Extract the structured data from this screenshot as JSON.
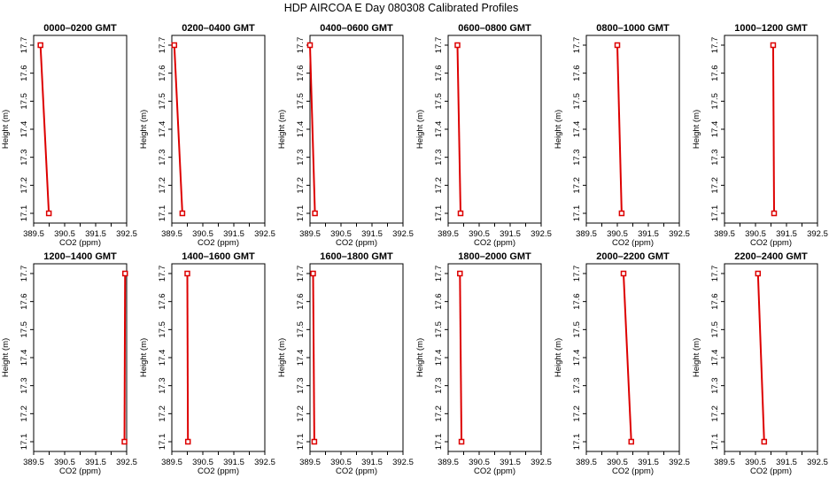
{
  "title": "HDP  AIRCOA E  Day 080308  Calibrated Profiles",
  "colors": {
    "line": "#dd0000",
    "marker": "#dd0000",
    "axis": "#000000",
    "background": "#ffffff"
  },
  "chart_data": [
    {
      "type": "line",
      "title": "0000–0200 GMT",
      "xlabel": "CO2 (ppm)",
      "ylabel": "Height (m)",
      "xlim": [
        389.5,
        392.5
      ],
      "ylim": [
        17.1,
        17.7
      ],
      "xticks": [
        "389.5",
        "390.5",
        "391.5",
        "392.5"
      ],
      "yticks": [
        "17.1",
        "17.2",
        "17.3",
        "17.4",
        "17.5",
        "17.6",
        "17.7"
      ],
      "series": [
        {
          "points": [
            {
              "x": 389.72,
              "y": 17.7
            },
            {
              "x": 389.99,
              "y": 17.1
            }
          ]
        }
      ]
    },
    {
      "type": "line",
      "title": "0200–0400 GMT",
      "xlabel": "CO2 (ppm)",
      "ylabel": "Height (m)",
      "xlim": [
        389.5,
        392.5
      ],
      "ylim": [
        17.1,
        17.7
      ],
      "xticks": [
        "389.5",
        "390.5",
        "391.5",
        "392.5"
      ],
      "yticks": [
        "17.1",
        "17.2",
        "17.3",
        "17.4",
        "17.5",
        "17.6",
        "17.7"
      ],
      "series": [
        {
          "points": [
            {
              "x": 389.58,
              "y": 17.7
            },
            {
              "x": 389.84,
              "y": 17.1
            }
          ]
        }
      ]
    },
    {
      "type": "line",
      "title": "0400–0600 GMT",
      "xlabel": "CO2 (ppm)",
      "ylabel": "Height (m)",
      "xlim": [
        389.5,
        392.5
      ],
      "ylim": [
        17.1,
        17.7
      ],
      "xticks": [
        "389.5",
        "390.5",
        "391.5",
        "392.5"
      ],
      "yticks": [
        "17.1",
        "17.2",
        "17.3",
        "17.4",
        "17.5",
        "17.6",
        "17.7"
      ],
      "series": [
        {
          "points": [
            {
              "x": 389.5,
              "y": 17.7
            },
            {
              "x": 389.66,
              "y": 17.1
            }
          ]
        }
      ]
    },
    {
      "type": "line",
      "title": "0600–0800 GMT",
      "xlabel": "CO2 (ppm)",
      "ylabel": "Height (m)",
      "xlim": [
        389.5,
        392.5
      ],
      "ylim": [
        17.1,
        17.7
      ],
      "xticks": [
        "389.5",
        "390.5",
        "391.5",
        "392.5"
      ],
      "yticks": [
        "17.1",
        "17.2",
        "17.3",
        "17.4",
        "17.5",
        "17.6",
        "17.7"
      ],
      "series": [
        {
          "points": [
            {
              "x": 389.8,
              "y": 17.7
            },
            {
              "x": 389.9,
              "y": 17.1
            }
          ]
        }
      ]
    },
    {
      "type": "line",
      "title": "0800–1000 GMT",
      "xlabel": "CO2 (ppm)",
      "ylabel": "Height (m)",
      "xlim": [
        389.5,
        392.5
      ],
      "ylim": [
        17.1,
        17.7
      ],
      "xticks": [
        "389.5",
        "390.5",
        "391.5",
        "392.5"
      ],
      "yticks": [
        "17.1",
        "17.2",
        "17.3",
        "17.4",
        "17.5",
        "17.6",
        "17.7"
      ],
      "series": [
        {
          "points": [
            {
              "x": 390.5,
              "y": 17.7
            },
            {
              "x": 390.64,
              "y": 17.1
            }
          ]
        }
      ]
    },
    {
      "type": "line",
      "title": "1000–1200 GMT",
      "xlabel": "CO2 (ppm)",
      "ylabel": "Height (m)",
      "xlim": [
        389.5,
        392.5
      ],
      "ylim": [
        17.1,
        17.7
      ],
      "xticks": [
        "389.5",
        "390.5",
        "391.5",
        "392.5"
      ],
      "yticks": [
        "17.1",
        "17.2",
        "17.3",
        "17.4",
        "17.5",
        "17.6",
        "17.7"
      ],
      "series": [
        {
          "points": [
            {
              "x": 391.07,
              "y": 17.7
            },
            {
              "x": 391.1,
              "y": 17.1
            }
          ]
        }
      ]
    },
    {
      "type": "line",
      "title": "1200–1400 GMT",
      "xlabel": "CO2 (ppm)",
      "ylabel": "Height (m)",
      "xlim": [
        389.5,
        392.5
      ],
      "ylim": [
        17.1,
        17.7
      ],
      "xticks": [
        "389.5",
        "390.5",
        "391.5",
        "392.5"
      ],
      "yticks": [
        "17.1",
        "17.2",
        "17.3",
        "17.4",
        "17.5",
        "17.6",
        "17.7"
      ],
      "series": [
        {
          "points": [
            {
              "x": 392.45,
              "y": 17.7
            },
            {
              "x": 392.43,
              "y": 17.1
            }
          ]
        }
      ]
    },
    {
      "type": "line",
      "title": "1400–1600 GMT",
      "xlabel": "CO2 (ppm)",
      "ylabel": "Height (m)",
      "xlim": [
        389.5,
        392.5
      ],
      "ylim": [
        17.1,
        17.7
      ],
      "xticks": [
        "389.5",
        "390.5",
        "391.5",
        "392.5"
      ],
      "yticks": [
        "17.1",
        "17.2",
        "17.3",
        "17.4",
        "17.5",
        "17.6",
        "17.7"
      ],
      "series": [
        {
          "points": [
            {
              "x": 390.0,
              "y": 17.7
            },
            {
              "x": 390.02,
              "y": 17.1
            }
          ]
        }
      ]
    },
    {
      "type": "line",
      "title": "1600–1800 GMT",
      "xlabel": "CO2 (ppm)",
      "ylabel": "Height (m)",
      "xlim": [
        389.5,
        392.5
      ],
      "ylim": [
        17.1,
        17.7
      ],
      "xticks": [
        "389.5",
        "390.5",
        "391.5",
        "392.5"
      ],
      "yticks": [
        "17.1",
        "17.2",
        "17.3",
        "17.4",
        "17.5",
        "17.6",
        "17.7"
      ],
      "series": [
        {
          "points": [
            {
              "x": 389.6,
              "y": 17.7
            },
            {
              "x": 389.64,
              "y": 17.1
            }
          ]
        }
      ]
    },
    {
      "type": "line",
      "title": "1800–2000 GMT",
      "xlabel": "CO2 (ppm)",
      "ylabel": "Height (m)",
      "xlim": [
        389.5,
        392.5
      ],
      "ylim": [
        17.1,
        17.7
      ],
      "xticks": [
        "389.5",
        "390.5",
        "391.5",
        "392.5"
      ],
      "yticks": [
        "17.1",
        "17.2",
        "17.3",
        "17.4",
        "17.5",
        "17.6",
        "17.7"
      ],
      "series": [
        {
          "points": [
            {
              "x": 389.88,
              "y": 17.7
            },
            {
              "x": 389.93,
              "y": 17.1
            }
          ]
        }
      ]
    },
    {
      "type": "line",
      "title": "2000–2200 GMT",
      "xlabel": "CO2 (ppm)",
      "ylabel": "Height (m)",
      "xlim": [
        389.5,
        392.5
      ],
      "ylim": [
        17.1,
        17.7
      ],
      "xticks": [
        "389.5",
        "390.5",
        "391.5",
        "392.5"
      ],
      "yticks": [
        "17.1",
        "17.2",
        "17.3",
        "17.4",
        "17.5",
        "17.6",
        "17.7"
      ],
      "series": [
        {
          "points": [
            {
              "x": 390.7,
              "y": 17.7
            },
            {
              "x": 390.95,
              "y": 17.1
            }
          ]
        }
      ]
    },
    {
      "type": "line",
      "title": "2200–2400 GMT",
      "xlabel": "CO2 (ppm)",
      "ylabel": "Height (m)",
      "xlim": [
        389.5,
        392.5
      ],
      "ylim": [
        17.1,
        17.7
      ],
      "xticks": [
        "389.5",
        "390.5",
        "391.5",
        "392.5"
      ],
      "yticks": [
        "17.1",
        "17.2",
        "17.3",
        "17.4",
        "17.5",
        "17.6",
        "17.7"
      ],
      "series": [
        {
          "points": [
            {
              "x": 390.58,
              "y": 17.7
            },
            {
              "x": 390.78,
              "y": 17.1
            }
          ]
        }
      ]
    }
  ]
}
